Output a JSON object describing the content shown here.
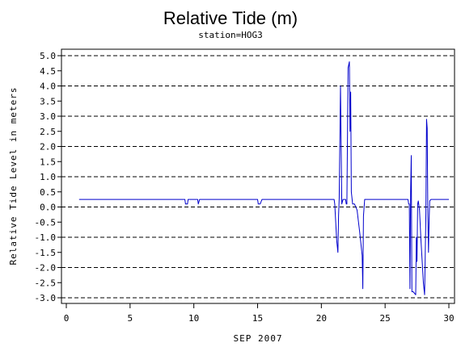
{
  "chart_data": {
    "type": "line",
    "title": "Relative Tide (m)",
    "subtitle": "station=HOG3",
    "xlabel": "SEP 2007",
    "ylabel": "Relative Tide Level in meters",
    "xlim": [
      0,
      30
    ],
    "ylim": [
      -3.0,
      5.0
    ],
    "x_ticks": [
      0,
      5,
      10,
      15,
      20,
      25,
      30
    ],
    "y_ticks": [
      5.0,
      4.5,
      4.0,
      3.5,
      3.0,
      2.5,
      2.0,
      1.5,
      1.0,
      0.5,
      0.0,
      -0.5,
      -1.0,
      -1.5,
      -2.0,
      -2.5,
      -3.0
    ],
    "y_tick_labels": [
      "5.0",
      "4.5",
      "4.0",
      "3.5",
      "3.0",
      "2.5",
      "2.0",
      "1.5",
      "1.0",
      "0.5",
      "0.0",
      "-0.5",
      "-1.0",
      "-1.5",
      "-2.0",
      "-2.5",
      "-3.0"
    ],
    "grid": "horizontal dashed at every 1.0",
    "series": [
      {
        "color": "#0000cc",
        "x": [
          1.0,
          9.3,
          9.35,
          9.5,
          9.55,
          10.3,
          10.35,
          10.45,
          15.0,
          15.05,
          15.2,
          15.3,
          15.35,
          21.0,
          21.05,
          21.1,
          21.2,
          21.3,
          21.35,
          21.4,
          21.5,
          21.6,
          21.7,
          21.9,
          21.95,
          22.0,
          22.1,
          22.2,
          22.25,
          22.3,
          22.35,
          22.45,
          22.6,
          22.8,
          23.0,
          23.2,
          23.25,
          23.3,
          23.4,
          23.6,
          26.8,
          26.85,
          26.9,
          26.95,
          27.0,
          27.05,
          27.1,
          27.2,
          27.4,
          27.45,
          27.5,
          27.55,
          27.6,
          27.7,
          27.8,
          28.0,
          28.1,
          28.2,
          28.25,
          28.3,
          28.35,
          28.4,
          28.45,
          28.5,
          28.6,
          28.7,
          30.0
        ],
        "y": [
          0.25,
          0.25,
          0.1,
          0.1,
          0.25,
          0.25,
          0.1,
          0.25,
          0.25,
          0.1,
          0.1,
          0.2,
          0.25,
          0.25,
          0.1,
          -0.3,
          -1.1,
          -1.5,
          -0.3,
          0.3,
          4.0,
          0.1,
          0.25,
          0.25,
          0.1,
          0.1,
          4.6,
          4.8,
          2.5,
          3.8,
          0.5,
          0.1,
          0.1,
          -0.1,
          -0.8,
          -1.6,
          -2.7,
          -0.3,
          0.25,
          0.25,
          0.25,
          0.1,
          0.1,
          -2.7,
          0.5,
          1.7,
          -2.8,
          -2.8,
          -2.9,
          -1.0,
          -1.8,
          0.1,
          0.2,
          -0.1,
          -1.0,
          -2.5,
          -2.9,
          -0.2,
          2.9,
          2.6,
          -0.3,
          -1.5,
          -0.4,
          0.2,
          0.25,
          0.25,
          0.25
        ]
      }
    ]
  }
}
